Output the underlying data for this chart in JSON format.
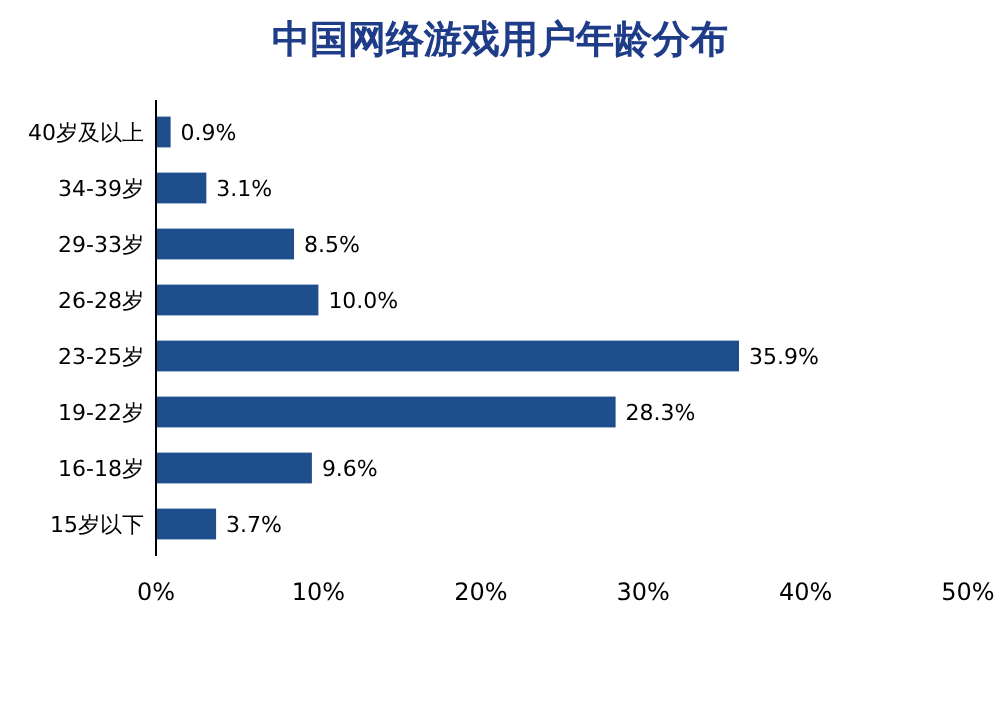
{
  "chart_data": {
    "type": "bar",
    "orientation": "horizontal",
    "title": "中国网络游戏用户年龄分布",
    "categories": [
      "40岁及以上",
      "34-39岁",
      "29-33岁",
      "26-28岁",
      "23-25岁",
      "19-22岁",
      "16-18岁",
      "15岁以下"
    ],
    "values": [
      0.9,
      3.1,
      8.5,
      10.0,
      35.9,
      28.3,
      9.6,
      3.7
    ],
    "value_labels": [
      "0.9%",
      "3.1%",
      "8.5%",
      "10.0%",
      "35.9%",
      "28.3%",
      "9.6%",
      "3.7%"
    ],
    "color": "#1f4e8c",
    "xlim": [
      0,
      50
    ],
    "xticks": [
      {
        "value": 0,
        "label": "0%"
      },
      {
        "value": 10,
        "label": "10%"
      },
      {
        "value": 20,
        "label": "20%"
      },
      {
        "value": 30,
        "label": "30%"
      },
      {
        "value": 40,
        "label": "40%"
      },
      {
        "value": 50,
        "label": "50%"
      }
    ]
  }
}
